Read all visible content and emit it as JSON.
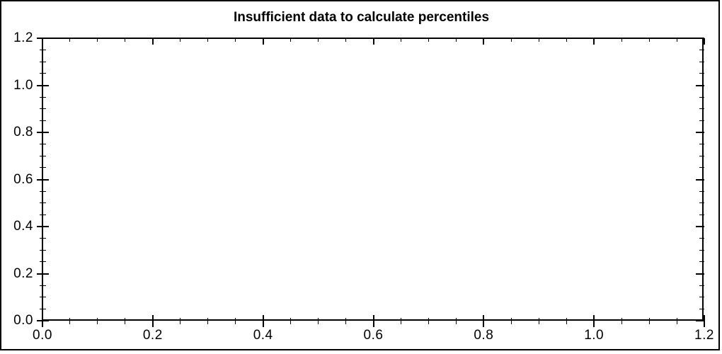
{
  "window": {
    "background_color": "#ffffff",
    "frame_border_color": "#000000"
  },
  "chart_data": {
    "type": "scatter",
    "title": "Insufficient data to calculate percentiles",
    "series": [],
    "plot_area_empty": true,
    "grid": false,
    "legend": false,
    "xlabel": "",
    "ylabel": "",
    "x_axis": {
      "min": 0.0,
      "max": 1.2,
      "major_tick_step": 0.2,
      "minor_tick_step": 0.05,
      "tick_labels": [
        "0.0",
        "0.2",
        "0.4",
        "0.6",
        "0.8",
        "1.0",
        "1.2"
      ]
    },
    "y_axis": {
      "min": 0.0,
      "max": 1.2,
      "major_tick_step": 0.2,
      "minor_tick_step": 0.05,
      "tick_labels": [
        "0.0",
        "0.2",
        "0.4",
        "0.6",
        "0.8",
        "1.0",
        "1.2"
      ]
    },
    "axis_color": "#000000",
    "text_color": "#000000"
  }
}
